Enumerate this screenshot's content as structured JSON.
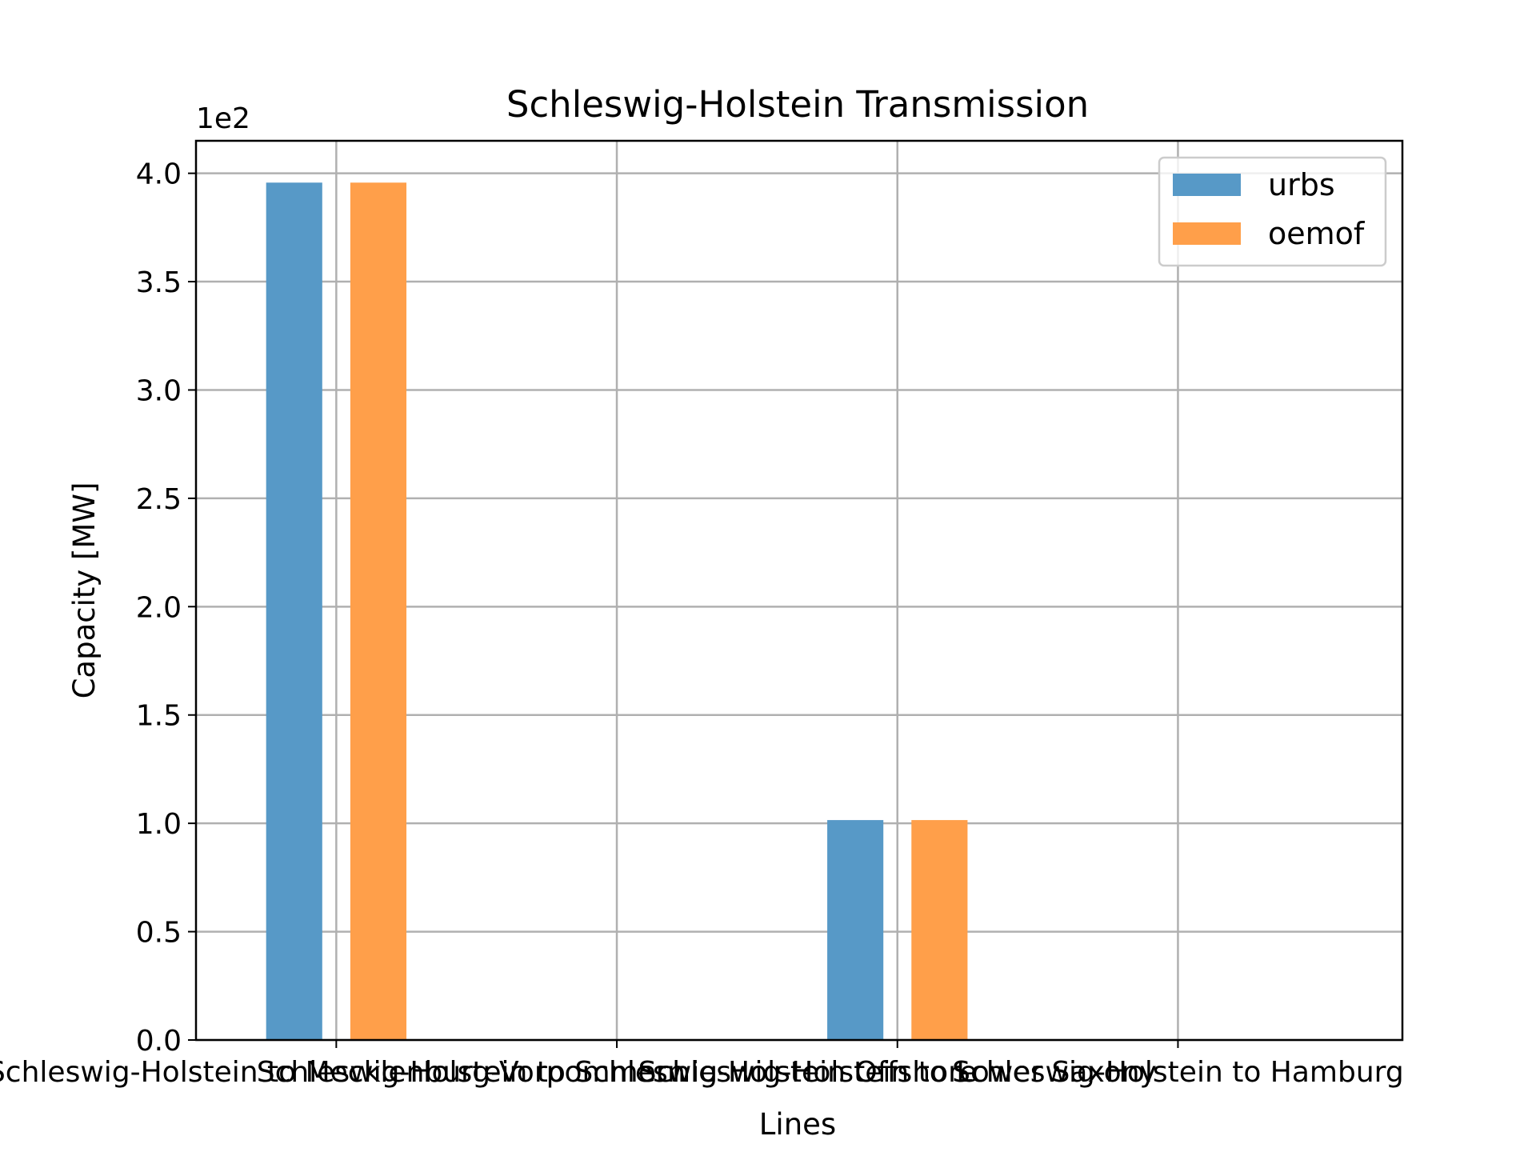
{
  "chart_data": {
    "type": "bar",
    "title": "Schleswig-Holstein Transmission",
    "xlabel": "Lines",
    "ylabel": "Capacity [MW]",
    "y_offset_label": "1e2",
    "categories": [
      "Schleswig-Holstein to Mecklenburg-Vorpommern",
      "Schleswig-Holstein to Schleswig-Holstein Offshore",
      "Schleswig-Holstein to Lower Saxony",
      "Schleswig-Holstein to Hamburg"
    ],
    "series": [
      {
        "name": "urbs",
        "color": "#5799c7",
        "values": [
          395.7,
          0,
          101.5,
          0
        ]
      },
      {
        "name": "oemof",
        "color": "#ff9f4a",
        "values": [
          395.7,
          0,
          101.5,
          0
        ]
      }
    ],
    "ylim": [
      0,
      415
    ],
    "yticks": [
      0,
      50,
      100,
      150,
      200,
      250,
      300,
      350,
      400
    ],
    "ytick_labels": [
      "0.0",
      "0.5",
      "1.0",
      "1.5",
      "2.0",
      "2.5",
      "3.0",
      "3.5",
      "4.0"
    ],
    "grid": true,
    "legend_position": "top-right"
  }
}
